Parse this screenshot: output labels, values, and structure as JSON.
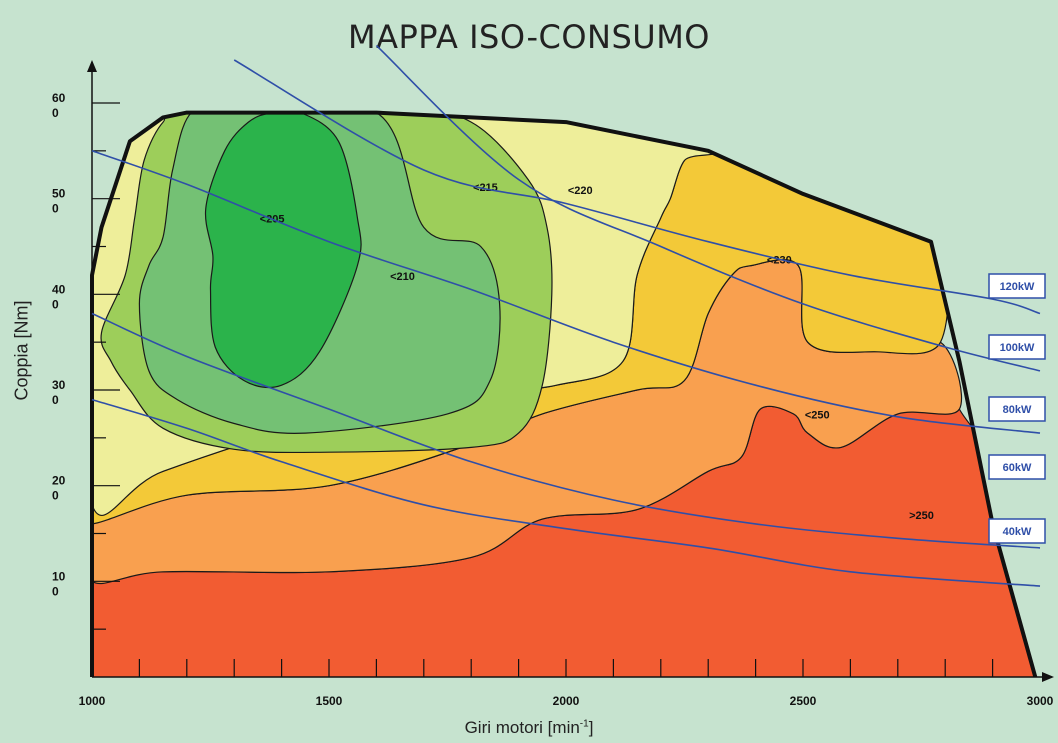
{
  "chart_data": {
    "type": "area",
    "title": "MAPPA ISO-CONSUMO",
    "xlabel": "Giri motori [min-1]",
    "xlabel_base": "Giri motori [min",
    "xlabel_sup": "-1",
    "xlabel_close": "]",
    "ylabel": "Coppia [Nm]",
    "xlim": [
      1000,
      3000
    ],
    "ylim": [
      0,
      600
    ],
    "x_ticks": [
      {
        "value": 1000,
        "label": "1000"
      },
      {
        "value": 1500,
        "label": "1500"
      },
      {
        "value": 2000,
        "label": "2000"
      },
      {
        "value": 2500,
        "label": "2500"
      },
      {
        "value": 3000,
        "label": "3000"
      }
    ],
    "y_ticks": [
      {
        "value": 100,
        "label": "10\n0"
      },
      {
        "value": 200,
        "label": "20\n0"
      },
      {
        "value": 300,
        "label": "30\n0"
      },
      {
        "value": 400,
        "label": "40\n0"
      },
      {
        "value": 500,
        "label": "50\n0"
      },
      {
        "value": 600,
        "label": "60\n0"
      }
    ],
    "max_torque_curve": [
      [
        1000,
        420
      ],
      [
        1020,
        470
      ],
      [
        1080,
        560
      ],
      [
        1150,
        585
      ],
      [
        1200,
        590
      ],
      [
        1600,
        590
      ],
      [
        2000,
        580
      ],
      [
        2300,
        550
      ],
      [
        2500,
        505
      ],
      [
        2770,
        455
      ],
      [
        2830,
        330
      ],
      [
        2900,
        160
      ],
      [
        2990,
        0
      ]
    ],
    "regions": [
      {
        "label": ">250",
        "color": "#f25c32",
        "label_at": [
          2750,
          165
        ],
        "boundary": [
          [
            1000,
            0
          ],
          [
            3000,
            0
          ],
          [
            2830,
            280
          ],
          [
            2700,
            275
          ],
          [
            2580,
            240
          ],
          [
            2510,
            255
          ],
          [
            2480,
            275
          ],
          [
            2410,
            280
          ],
          [
            2370,
            230
          ],
          [
            2300,
            215
          ],
          [
            2150,
            175
          ],
          [
            1950,
            165
          ],
          [
            1800,
            125
          ],
          [
            1500,
            110
          ],
          [
            1150,
            110
          ],
          [
            1000,
            100
          ]
        ]
      },
      {
        "label": "<250",
        "color": "#f9a04f",
        "label_at": [
          2530,
          270
        ],
        "boundary": [
          [
            1000,
            100
          ],
          [
            1150,
            110
          ],
          [
            1500,
            110
          ],
          [
            1800,
            125
          ],
          [
            1950,
            165
          ],
          [
            2150,
            175
          ],
          [
            2300,
            215
          ],
          [
            2370,
            230
          ],
          [
            2410,
            280
          ],
          [
            2480,
            275
          ],
          [
            2510,
            255
          ],
          [
            2580,
            240
          ],
          [
            2700,
            275
          ],
          [
            2830,
            280
          ],
          [
            2790,
            350
          ],
          [
            2650,
            340
          ],
          [
            2510,
            350
          ],
          [
            2490,
            430
          ],
          [
            2390,
            430
          ],
          [
            2350,
            420
          ],
          [
            2300,
            380
          ],
          [
            2250,
            310
          ],
          [
            2150,
            300
          ],
          [
            1950,
            275
          ],
          [
            1780,
            240
          ],
          [
            1500,
            200
          ],
          [
            1200,
            190
          ],
          [
            1000,
            160
          ]
        ]
      },
      {
        "label": "<230",
        "color": "#f3c938",
        "label_at": [
          2450,
          432
        ],
        "boundary": [
          [
            1000,
            160
          ],
          [
            1200,
            190
          ],
          [
            1500,
            200
          ],
          [
            1780,
            240
          ],
          [
            1950,
            275
          ],
          [
            2150,
            300
          ],
          [
            2250,
            310
          ],
          [
            2300,
            380
          ],
          [
            2350,
            420
          ],
          [
            2390,
            430
          ],
          [
            2490,
            430
          ],
          [
            2510,
            350
          ],
          [
            2650,
            340
          ],
          [
            2790,
            350
          ],
          [
            2770,
            455
          ],
          [
            2500,
            505
          ],
          [
            2300,
            550
          ],
          [
            2250,
            540
          ],
          [
            2220,
            500
          ],
          [
            2200,
            480
          ],
          [
            2150,
            420
          ],
          [
            2120,
            330
          ],
          [
            1980,
            305
          ],
          [
            1800,
            295
          ],
          [
            1500,
            270
          ],
          [
            1150,
            215
          ],
          [
            1000,
            180
          ]
        ]
      },
      {
        "label": "<220",
        "color": "#eeee9a",
        "label_at": [
          2030,
          505
        ],
        "boundary": [
          [
            1000,
            180
          ],
          [
            1150,
            215
          ],
          [
            1500,
            270
          ],
          [
            1800,
            295
          ],
          [
            1980,
            305
          ],
          [
            2120,
            330
          ],
          [
            2150,
            420
          ],
          [
            2200,
            480
          ],
          [
            2220,
            500
          ],
          [
            2250,
            540
          ],
          [
            2300,
            550
          ],
          [
            2000,
            580
          ],
          [
            1600,
            590
          ],
          [
            1200,
            590
          ],
          [
            1150,
            585
          ],
          [
            1080,
            560
          ],
          [
            1020,
            470
          ],
          [
            1000,
            420
          ]
        ]
      },
      {
        "label": "<215",
        "color": "#9dce5a",
        "label_at": [
          1830,
          508
        ],
        "boundary": [
          [
            1020,
            360
          ],
          [
            1040,
            330
          ],
          [
            1080,
            300
          ],
          [
            1150,
            260
          ],
          [
            1300,
            238
          ],
          [
            1500,
            235
          ],
          [
            1800,
            240
          ],
          [
            1900,
            255
          ],
          [
            1950,
            305
          ],
          [
            1970,
            400
          ],
          [
            1960,
            470
          ],
          [
            1920,
            520
          ],
          [
            1800,
            580
          ],
          [
            1650,
            592
          ],
          [
            1200,
            590
          ],
          [
            1150,
            580
          ],
          [
            1110,
            540
          ],
          [
            1090,
            480
          ],
          [
            1070,
            420
          ]
        ]
      },
      {
        "label": "<210",
        "color": "#74c174",
        "label_at": [
          1655,
          415
        ],
        "boundary": [
          [
            1100,
            390
          ],
          [
            1120,
            320
          ],
          [
            1180,
            290
          ],
          [
            1300,
            265
          ],
          [
            1450,
            255
          ],
          [
            1750,
            275
          ],
          [
            1840,
            310
          ],
          [
            1860,
            390
          ],
          [
            1820,
            450
          ],
          [
            1700,
            470
          ],
          [
            1600,
            590
          ],
          [
            1300,
            590
          ],
          [
            1210,
            590
          ],
          [
            1170,
            530
          ],
          [
            1150,
            460
          ],
          [
            1120,
            430
          ]
        ]
      },
      {
        "label": "<205",
        "color": "#2bb34b",
        "label_at": [
          1380,
          475
        ],
        "boundary": [
          [
            1250,
            405
          ],
          [
            1260,
            345
          ],
          [
            1320,
            310
          ],
          [
            1400,
            305
          ],
          [
            1480,
            340
          ],
          [
            1560,
            430
          ],
          [
            1560,
            480
          ],
          [
            1520,
            560
          ],
          [
            1440,
            590
          ],
          [
            1380,
            590
          ],
          [
            1330,
            580
          ],
          [
            1280,
            550
          ],
          [
            1240,
            490
          ],
          [
            1255,
            440
          ]
        ]
      }
    ],
    "power_curves": [
      {
        "name": "120kW",
        "points": [
          [
            1300,
            645
          ],
          [
            1700,
            530
          ],
          [
            2000,
            495
          ],
          [
            2300,
            455
          ],
          [
            2600,
            420
          ],
          [
            2900,
            395
          ],
          [
            3000,
            380
          ]
        ]
      },
      {
        "name": "100kW",
        "points": [
          [
            1600,
            660
          ],
          [
            1900,
            520
          ],
          [
            2200,
            450
          ],
          [
            2500,
            390
          ],
          [
            2800,
            345
          ],
          [
            3000,
            320
          ]
        ]
      },
      {
        "name": "80kW",
        "points": [
          [
            1000,
            550
          ],
          [
            1200,
            515
          ],
          [
            1500,
            455
          ],
          [
            1800,
            405
          ],
          [
            2100,
            350
          ],
          [
            2400,
            305
          ],
          [
            2700,
            272
          ],
          [
            3000,
            255
          ]
        ]
      },
      {
        "name": "60kW",
        "points": [
          [
            1000,
            380
          ],
          [
            1200,
            335
          ],
          [
            1500,
            280
          ],
          [
            1800,
            225
          ],
          [
            2100,
            185
          ],
          [
            2400,
            160
          ],
          [
            2700,
            145
          ],
          [
            3000,
            135
          ]
        ]
      },
      {
        "name": "40kW",
        "points": [
          [
            1000,
            290
          ],
          [
            1200,
            260
          ],
          [
            1400,
            225
          ],
          [
            1700,
            180
          ],
          [
            2000,
            155
          ],
          [
            2300,
            135
          ],
          [
            2600,
            110
          ],
          [
            3000,
            95
          ]
        ]
      }
    ],
    "grid": false
  }
}
